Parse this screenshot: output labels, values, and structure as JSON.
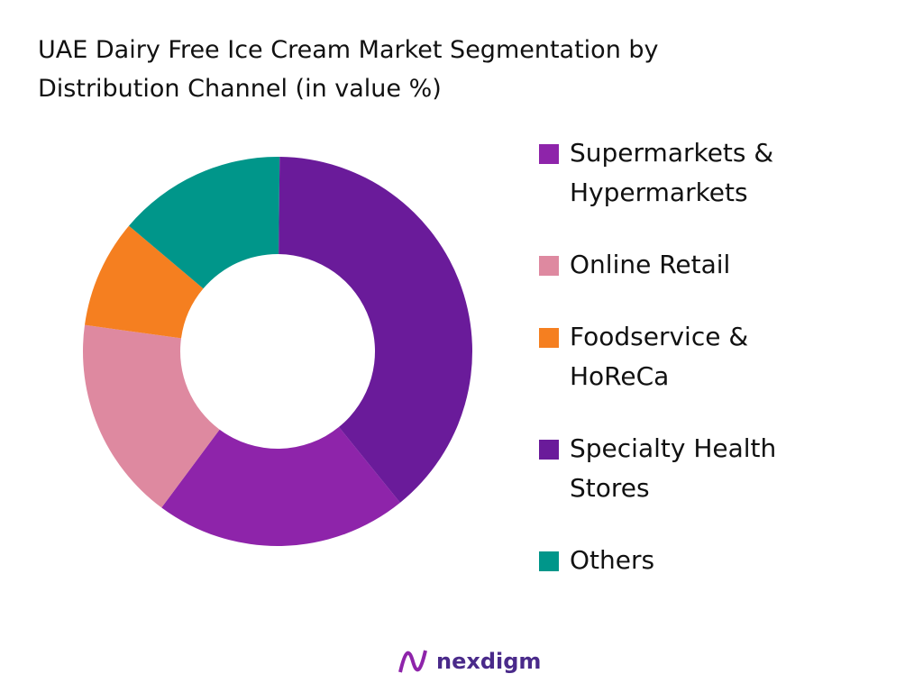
{
  "chart_data": {
    "type": "donut",
    "title": "UAE Dairy Free Ice Cream Market Segmentation by Distribution Channel (in value %)",
    "categories": [
      "Supermarkets & Hypermarkets",
      "Online Retail",
      "Foodservice & HoReCa",
      "Specialty Health Stores",
      "Others"
    ],
    "values": [
      21,
      17,
      9,
      39,
      14
    ],
    "colors": [
      "#8e24aa",
      "#de89a0",
      "#f57f20",
      "#6a1b9a",
      "#00968a"
    ]
  },
  "brand": "nexdigm"
}
